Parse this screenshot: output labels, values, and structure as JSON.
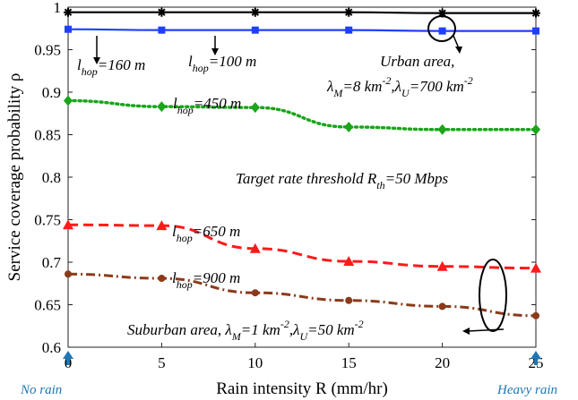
{
  "chart_data": {
    "type": "line",
    "xlabel": "Rain intensity R (mm/hr)",
    "ylabel": "Service coverage probability ρ",
    "xlim": [
      0,
      25
    ],
    "ylim": [
      0.6,
      1.0
    ],
    "grid": false,
    "x": [
      0,
      5,
      10,
      15,
      20,
      25
    ],
    "xticks": [
      "0",
      "5",
      "10",
      "15",
      "20",
      "25"
    ],
    "yticks": [
      "0.6",
      "0.65",
      "0.7",
      "0.75",
      "0.8",
      "0.85",
      "0.9",
      "0.95",
      "1"
    ],
    "series": [
      {
        "key": "urban-160",
        "values": [
          0.994,
          0.994,
          0.994,
          0.994,
          0.993,
          0.993
        ],
        "color": "#000000",
        "dash": "solid",
        "marker": "star"
      },
      {
        "key": "urban-100",
        "values": [
          0.974,
          0.973,
          0.973,
          0.973,
          0.972,
          0.972
        ],
        "color": "#1f3fff",
        "dash": "solid",
        "marker": "square"
      },
      {
        "key": "urban-450",
        "values": [
          0.89,
          0.883,
          0.882,
          0.859,
          0.856,
          0.856
        ],
        "color": "#1aa51a",
        "dash": "dotted",
        "marker": "diamond"
      },
      {
        "key": "suburban-650",
        "values": [
          0.744,
          0.743,
          0.716,
          0.701,
          0.695,
          0.693
        ],
        "color": "#ff1a1a",
        "dash": "dashed",
        "marker": "triangle"
      },
      {
        "key": "suburban-900",
        "values": [
          0.686,
          0.681,
          0.664,
          0.655,
          0.648,
          0.637
        ],
        "color": "#8b3a1a",
        "dash": "dashdot",
        "marker": "circle"
      }
    ],
    "annotations": {
      "hop_prefix": "l",
      "hop_sub": "hop",
      "hop_160": "=160 m",
      "hop_100": "=100 m",
      "hop_450": "=450 m",
      "hop_650": "=650 m",
      "hop_900": "=900 m",
      "urban_line1": "Urban area,",
      "urban_lambda": "λ",
      "urban_M": "M",
      "urban_mid": "=8 km",
      "urban_exp": "-2",
      "urban_comma": ",λ",
      "urban_U": "U",
      "urban_end": "=700 km",
      "target_pre": "Target rate threshold R",
      "target_sub": "th",
      "target_post": "=50 Mbps",
      "suburban_pre": "Suburban area, λ",
      "suburban_M": "M",
      "suburban_mid": "=1 km",
      "suburban_exp": "-2",
      "suburban_comma": ",λ",
      "suburban_U": "U",
      "suburban_end": "=50 km",
      "no_rain": "No rain",
      "heavy_rain": "Heavy rain"
    }
  }
}
